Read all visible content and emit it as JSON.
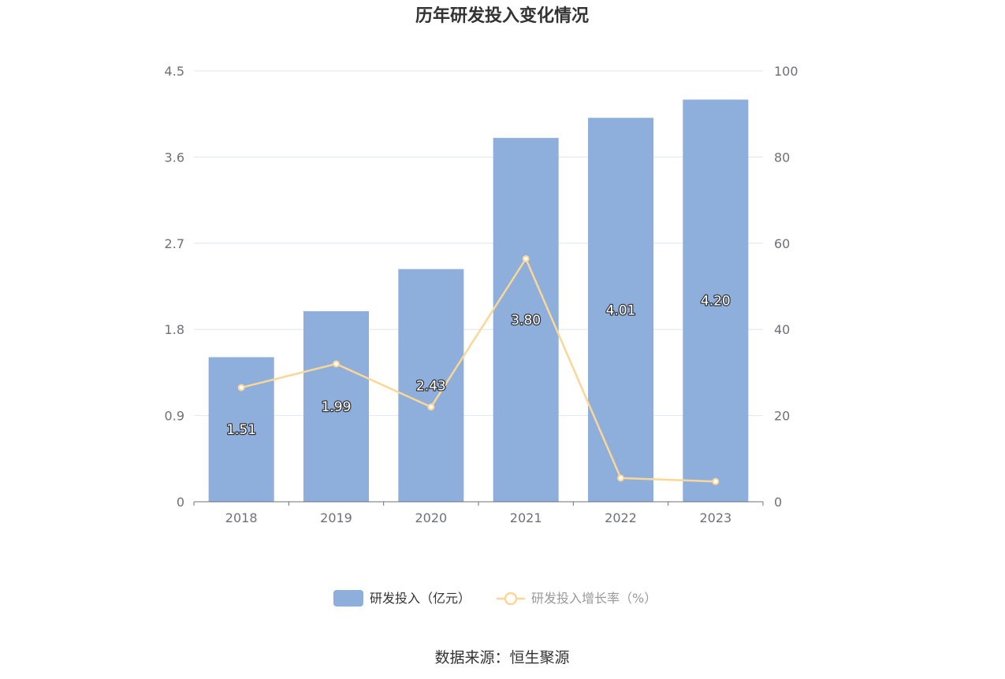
{
  "chart_data": {
    "type": "bar",
    "title": "历年研发投入变化情况",
    "categories": [
      "2018",
      "2019",
      "2020",
      "2021",
      "2022",
      "2023"
    ],
    "series": [
      {
        "name": "研发投入（亿元）",
        "type": "bar",
        "axis": "left",
        "values": [
          1.51,
          1.99,
          2.43,
          3.8,
          4.01,
          4.2
        ],
        "labels": [
          "1.51",
          "1.99",
          "2.43",
          "3.80",
          "4.01",
          "4.20"
        ],
        "color": "#8eaedb"
      },
      {
        "name": "研发投入增长率（%）",
        "type": "line",
        "axis": "right",
        "values": [
          26.5,
          32.0,
          22.0,
          56.4,
          5.5,
          4.7
        ],
        "color": "#fad797"
      }
    ],
    "y_left": {
      "min": 0,
      "max": 4.5,
      "ticks": [
        "0",
        "0.9",
        "1.8",
        "2.7",
        "3.6",
        "4.5"
      ]
    },
    "y_right": {
      "min": 0,
      "max": 100,
      "ticks": [
        "0",
        "20",
        "40",
        "60",
        "80",
        "100"
      ]
    },
    "grid": true,
    "legend_position": "bottom"
  },
  "source": "数据来源：恒生聚源"
}
